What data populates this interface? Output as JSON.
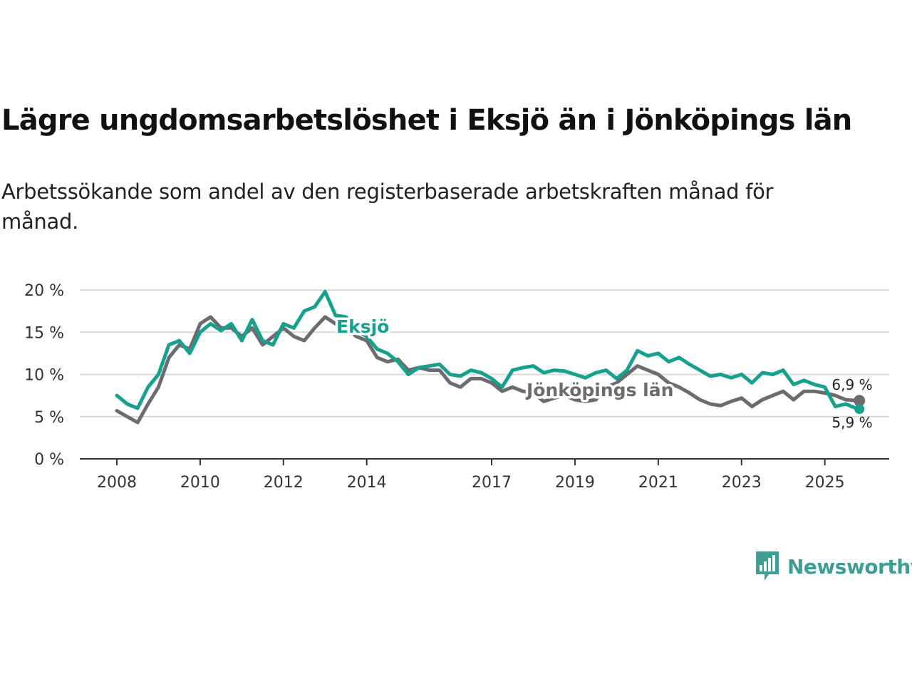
{
  "title": "Lägre ungdomsarbetslöshet i Eksjö än i Jönköpings län",
  "subtitle": "Arbetssökande som andel av den registerbaserade arbetskraften månad för månad.",
  "brand": "Newsworthy",
  "colors": {
    "eksjo": "#16a08e",
    "lan": "#6b6b70",
    "axis": "#333333",
    "grid": "#d9d9d9",
    "brand": "#3f9e94"
  },
  "chart_data": {
    "type": "line",
    "title": "Lägre ungdomsarbetslöshet i Eksjö än i Jönköpings län",
    "xlabel": "",
    "ylabel": "",
    "xlim": [
      2008,
      2026.5
    ],
    "ylim": [
      0,
      20
    ],
    "x_ticks": [
      2008,
      2010,
      2012,
      2014,
      2017,
      2019,
      2021,
      2023,
      2025
    ],
    "y_ticks": [
      0,
      5,
      10,
      15,
      20
    ],
    "y_tick_labels": [
      "0 %",
      "5 %",
      "10 %",
      "15 %",
      "20 %"
    ],
    "grid": true,
    "series": [
      {
        "name": "Eksjö",
        "end_label": "5,9 %",
        "x": [
          2008.0,
          2008.25,
          2008.5,
          2008.75,
          2009.0,
          2009.25,
          2009.5,
          2009.75,
          2010.0,
          2010.25,
          2010.5,
          2010.75,
          2011.0,
          2011.25,
          2011.5,
          2011.75,
          2012.0,
          2012.25,
          2012.5,
          2012.75,
          2013.0,
          2013.25,
          2013.5,
          2013.75,
          2014.0,
          2014.25,
          2014.5,
          2014.75,
          2015.0,
          2015.25,
          2015.5,
          2015.75,
          2016.0,
          2016.25,
          2016.5,
          2016.75,
          2017.0,
          2017.25,
          2017.5,
          2017.75,
          2018.0,
          2018.25,
          2018.5,
          2018.75,
          2019.0,
          2019.25,
          2019.5,
          2019.75,
          2020.0,
          2020.25,
          2020.5,
          2020.75,
          2021.0,
          2021.25,
          2021.5,
          2021.75,
          2022.0,
          2022.25,
          2022.5,
          2022.75,
          2023.0,
          2023.25,
          2023.5,
          2023.75,
          2024.0,
          2024.25,
          2024.5,
          2024.75,
          2025.0,
          2025.25,
          2025.5,
          2025.75,
          2025.83
        ],
        "values": [
          7.5,
          6.5,
          6.0,
          8.5,
          10.0,
          13.5,
          14.0,
          12.5,
          15.0,
          16.0,
          15.2,
          16.0,
          14.0,
          16.5,
          14.0,
          13.5,
          16.0,
          15.5,
          17.5,
          18.0,
          19.8,
          17.0,
          16.8,
          15.2,
          14.5,
          13.0,
          12.5,
          11.5,
          10.0,
          10.8,
          11.0,
          11.2,
          10.0,
          9.8,
          10.5,
          10.2,
          9.5,
          8.5,
          10.5,
          10.8,
          11.0,
          10.2,
          10.5,
          10.4,
          10.0,
          9.6,
          10.2,
          10.5,
          9.5,
          10.5,
          12.8,
          12.2,
          12.5,
          11.5,
          12.0,
          11.2,
          10.5,
          9.8,
          10.0,
          9.6,
          10.0,
          9.0,
          10.2,
          10.0,
          10.5,
          8.8,
          9.3,
          8.8,
          8.5,
          6.2,
          6.5,
          6.0,
          5.9
        ]
      },
      {
        "name": "Jönköpings län",
        "end_label": "6,9 %",
        "x": [
          2008.0,
          2008.25,
          2008.5,
          2008.75,
          2009.0,
          2009.25,
          2009.5,
          2009.75,
          2010.0,
          2010.25,
          2010.5,
          2010.75,
          2011.0,
          2011.25,
          2011.5,
          2011.75,
          2012.0,
          2012.25,
          2012.5,
          2012.75,
          2013.0,
          2013.25,
          2013.5,
          2013.75,
          2014.0,
          2014.25,
          2014.5,
          2014.75,
          2015.0,
          2015.25,
          2015.5,
          2015.75,
          2016.0,
          2016.25,
          2016.5,
          2016.75,
          2017.0,
          2017.25,
          2017.5,
          2017.75,
          2018.0,
          2018.25,
          2018.5,
          2018.75,
          2019.0,
          2019.25,
          2019.5,
          2019.75,
          2020.0,
          2020.25,
          2020.5,
          2020.75,
          2021.0,
          2021.25,
          2021.5,
          2021.75,
          2022.0,
          2022.25,
          2022.5,
          2022.75,
          2023.0,
          2023.25,
          2023.5,
          2023.75,
          2024.0,
          2024.25,
          2024.5,
          2024.75,
          2025.0,
          2025.25,
          2025.5,
          2025.75,
          2025.83
        ],
        "values": [
          5.7,
          5.0,
          4.3,
          6.5,
          8.5,
          12.0,
          13.5,
          13.0,
          16.0,
          16.8,
          15.5,
          15.5,
          14.5,
          15.5,
          13.5,
          14.5,
          15.5,
          14.5,
          14.0,
          15.5,
          16.8,
          16.0,
          15.5,
          14.5,
          14.0,
          12.0,
          11.5,
          11.8,
          10.5,
          10.8,
          10.5,
          10.5,
          9.0,
          8.5,
          9.5,
          9.5,
          9.0,
          8.0,
          8.5,
          8.0,
          7.8,
          6.8,
          7.2,
          7.5,
          7.0,
          6.8,
          7.0,
          8.5,
          9.0,
          10.0,
          11.0,
          10.5,
          10.0,
          9.0,
          8.5,
          7.8,
          7.0,
          6.5,
          6.3,
          6.8,
          7.2,
          6.2,
          7.0,
          7.5,
          8.0,
          7.0,
          8.0,
          8.0,
          7.8,
          7.5,
          7.0,
          6.9,
          6.9
        ]
      }
    ]
  }
}
